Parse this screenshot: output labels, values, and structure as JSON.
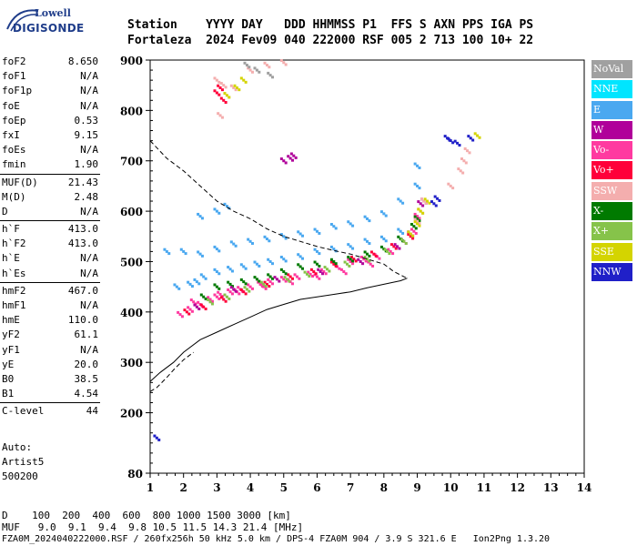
{
  "logo": {
    "line1": "Lowell",
    "line2": "DIGISONDE"
  },
  "header": {
    "line1": "Station    YYYY DAY   DDD HHMMSS P1  FFS S AXN PPS IGA PS",
    "line2": "Fortaleza  2024 Fev09 040 222000 RSF 005 2 713 100 10+ 22"
  },
  "params_group1": [
    {
      "name": "foF2",
      "value": "8.650"
    },
    {
      "name": "foF1",
      "value": "N/A"
    },
    {
      "name": "foF1p",
      "value": "N/A"
    },
    {
      "name": "foE",
      "value": "N/A"
    },
    {
      "name": "foEp",
      "value": "0.53"
    },
    {
      "name": "fxI",
      "value": "9.15"
    },
    {
      "name": "foEs",
      "value": "N/A"
    },
    {
      "name": "fmin",
      "value": "1.90"
    }
  ],
  "params_group2": [
    {
      "name": "MUF(D)",
      "value": "21.43"
    },
    {
      "name": "M(D)",
      "value": "2.48"
    },
    {
      "name": "D",
      "value": "N/A"
    }
  ],
  "params_group3": [
    {
      "name": "h`F",
      "value": "413.0"
    },
    {
      "name": "h`F2",
      "value": "413.0"
    },
    {
      "name": "h`E",
      "value": "N/A"
    },
    {
      "name": "h`Es",
      "value": "N/A"
    }
  ],
  "params_group4": [
    {
      "name": "hmF2",
      "value": "467.0"
    },
    {
      "name": "hmF1",
      "value": "N/A"
    },
    {
      "name": "hmE",
      "value": "110.0"
    },
    {
      "name": "yF2",
      "value": "61.1"
    },
    {
      "name": "yF1",
      "value": "N/A"
    },
    {
      "name": "yE",
      "value": "20.0"
    },
    {
      "name": "B0",
      "value": "38.5"
    },
    {
      "name": "B1",
      "value": "4.54"
    }
  ],
  "params_group5": [
    {
      "name": "C-level",
      "value": "44"
    }
  ],
  "auto": {
    "line1": "Auto:",
    "line2": "Artist5",
    "line3": "500200"
  },
  "legend": [
    {
      "label": "NoVal",
      "color": "#a0a0a0"
    },
    {
      "label": "NNE",
      "color": "#00e5ff"
    },
    {
      "label": "E",
      "color": "#4aa8f0"
    },
    {
      "label": "W",
      "color": "#b0009a"
    },
    {
      "label": "Vo-",
      "color": "#ff3aa0"
    },
    {
      "label": "Vo+",
      "color": "#ff003a"
    },
    {
      "label": "SSW",
      "color": "#f4aeae"
    },
    {
      "label": "X-",
      "color": "#007a00"
    },
    {
      "label": "X+",
      "color": "#86c34a"
    },
    {
      "label": "SSE",
      "color": "#d4d400"
    },
    {
      "label": "NNW",
      "color": "#2020c8"
    }
  ],
  "bottom": {
    "line1": "D    100  200  400  600  800 1000 1500 3000 [km]",
    "line2": "MUF   9.0  9.1  9.4  9.8 10.5 11.5 14.3 21.4 [MHz]"
  },
  "footer": "FZA0M_2024040222000.RSF / 260fx256h 50 kHz 5.0 km / DPS-4 FZA0M 904 / 3.9 S 321.6 E   Ion2Png 1.3.20",
  "chart_data": {
    "type": "scatter",
    "x_ticks": [
      "1",
      "2",
      "3",
      "4",
      "5",
      "6",
      "7",
      "8",
      "9",
      "10",
      "11",
      "12",
      "13",
      "14"
    ],
    "y_ticks": [
      "80",
      "200",
      "300",
      "400",
      "500",
      "600",
      "700",
      "800",
      "900"
    ],
    "xlim": [
      1,
      14
    ],
    "ylim": [
      80,
      900
    ],
    "grid": false,
    "series": [
      {
        "name": "E",
        "color": "#4aa8f0",
        "points": [
          [
            1.5,
            520
          ],
          [
            2,
            520
          ],
          [
            2.5,
            515
          ],
          [
            3,
            525
          ],
          [
            3.5,
            535
          ],
          [
            4,
            540
          ],
          [
            4.5,
            545
          ],
          [
            5,
            550
          ],
          [
            5.5,
            555
          ],
          [
            6,
            560
          ],
          [
            6.5,
            570
          ],
          [
            7,
            575
          ],
          [
            7.5,
            585
          ],
          [
            8,
            595
          ],
          [
            8.5,
            620
          ],
          [
            9,
            650
          ],
          [
            9,
            690
          ],
          [
            2.2,
            455
          ],
          [
            2.6,
            470
          ],
          [
            3,
            480
          ],
          [
            3.4,
            485
          ],
          [
            3.8,
            490
          ],
          [
            4.2,
            495
          ],
          [
            4.6,
            500
          ],
          [
            5,
            505
          ],
          [
            5.5,
            510
          ],
          [
            6,
            520
          ],
          [
            6.5,
            525
          ],
          [
            7,
            530
          ],
          [
            7.5,
            540
          ],
          [
            8,
            545
          ],
          [
            8.5,
            560
          ],
          [
            2.5,
            590
          ],
          [
            3,
            600
          ],
          [
            3.3,
            610
          ],
          [
            1.8,
            450
          ],
          [
            2.4,
            460
          ]
        ]
      },
      {
        "name": "Vo-",
        "color": "#ff3aa0",
        "points": [
          [
            1.9,
            395
          ],
          [
            2.2,
            405
          ],
          [
            2.5,
            415
          ],
          [
            2.8,
            425
          ],
          [
            3.1,
            435
          ],
          [
            3.4,
            440
          ],
          [
            3.7,
            445
          ],
          [
            4,
            450
          ],
          [
            4.3,
            455
          ],
          [
            4.6,
            460
          ],
          [
            5,
            465
          ],
          [
            5.4,
            470
          ],
          [
            5.8,
            475
          ],
          [
            6.2,
            480
          ],
          [
            6.6,
            490
          ],
          [
            7,
            500
          ],
          [
            7.4,
            505
          ],
          [
            7.8,
            510
          ],
          [
            8.2,
            520
          ],
          [
            8.6,
            540
          ],
          [
            8.9,
            560
          ],
          [
            9,
            590
          ],
          [
            2.3,
            420
          ],
          [
            3,
            430
          ],
          [
            3.6,
            440
          ],
          [
            4.4,
            450
          ],
          [
            5.2,
            460
          ],
          [
            6,
            470
          ],
          [
            6.8,
            480
          ],
          [
            7.6,
            495
          ]
        ]
      },
      {
        "name": "Vo+",
        "color": "#ff003a",
        "points": [
          [
            2.1,
            400
          ],
          [
            2.6,
            410
          ],
          [
            3.2,
            425
          ],
          [
            3.8,
            440
          ],
          [
            4.5,
            455
          ],
          [
            5.2,
            470
          ],
          [
            5.9,
            480
          ],
          [
            6.5,
            495
          ],
          [
            7.1,
            505
          ],
          [
            7.7,
            515
          ],
          [
            8.3,
            530
          ],
          [
            8.8,
            550
          ],
          [
            3.0,
            835
          ],
          [
            3.2,
            820
          ],
          [
            3.1,
            845
          ]
        ]
      },
      {
        "name": "X-",
        "color": "#007a00",
        "points": [
          [
            2.6,
            430
          ],
          [
            3.0,
            450
          ],
          [
            3.4,
            455
          ],
          [
            3.8,
            460
          ],
          [
            4.2,
            465
          ],
          [
            4.6,
            470
          ],
          [
            5,
            480
          ],
          [
            5.5,
            490
          ],
          [
            6,
            495
          ],
          [
            6.5,
            500
          ],
          [
            7,
            505
          ],
          [
            7.5,
            515
          ],
          [
            8,
            525
          ],
          [
            8.5,
            545
          ],
          [
            8.9,
            570
          ],
          [
            9,
            585
          ]
        ]
      },
      {
        "name": "X+",
        "color": "#86c34a",
        "points": [
          [
            2.8,
            420
          ],
          [
            3.3,
            430
          ],
          [
            3.9,
            445
          ],
          [
            4.4,
            455
          ],
          [
            5.1,
            465
          ],
          [
            5.7,
            475
          ],
          [
            6.3,
            485
          ],
          [
            6.9,
            495
          ],
          [
            7.5,
            505
          ],
          [
            8.1,
            520
          ],
          [
            8.6,
            540
          ]
        ]
      },
      {
        "name": "W",
        "color": "#b0009a",
        "points": [
          [
            2.4,
            410
          ],
          [
            3.5,
            445
          ],
          [
            4.8,
            465
          ],
          [
            6.1,
            480
          ],
          [
            7.3,
            500
          ],
          [
            8.4,
            530
          ],
          [
            8.8,
            555
          ],
          [
            5.0,
            700
          ],
          [
            5.2,
            705
          ],
          [
            5.3,
            710
          ],
          [
            9.1,
            615
          ],
          [
            9.2,
            620
          ]
        ]
      },
      {
        "name": "SSW",
        "color": "#f4aeae",
        "points": [
          [
            9,
            580
          ],
          [
            9.1,
            600
          ],
          [
            9.2,
            620
          ],
          [
            10,
            650
          ],
          [
            10.3,
            680
          ],
          [
            10.5,
            720
          ],
          [
            10.4,
            700
          ],
          [
            3,
            860
          ],
          [
            3.2,
            850
          ],
          [
            3.5,
            845
          ],
          [
            4,
            880
          ],
          [
            4.5,
            890
          ],
          [
            5,
            895
          ],
          [
            3.1,
            790
          ]
        ]
      },
      {
        "name": "SSE",
        "color": "#d4d400",
        "points": [
          [
            8.8,
            555
          ],
          [
            9,
            575
          ],
          [
            9.1,
            600
          ],
          [
            9.3,
            620
          ],
          [
            3.8,
            860
          ],
          [
            3.3,
            830
          ],
          [
            3.6,
            845
          ],
          [
            10.8,
            750
          ]
        ]
      },
      {
        "name": "NNW",
        "color": "#2020c8",
        "points": [
          [
            9.5,
            615
          ],
          [
            9.6,
            625
          ],
          [
            10,
            740
          ],
          [
            10.2,
            735
          ],
          [
            9.9,
            745
          ],
          [
            10.6,
            745
          ],
          [
            1.2,
            150
          ]
        ]
      },
      {
        "name": "NoVal",
        "color": "#a0a0a0",
        "points": [
          [
            4.2,
            880
          ],
          [
            4.6,
            870
          ],
          [
            3.9,
            890
          ]
        ]
      }
    ],
    "profile_solid": [
      [
        1,
        262
      ],
      [
        1.3,
        280
      ],
      [
        1.7,
        300
      ],
      [
        2,
        320
      ],
      [
        2.5,
        345
      ],
      [
        3,
        360
      ],
      [
        3.5,
        375
      ],
      [
        4,
        390
      ],
      [
        4.5,
        405
      ],
      [
        5,
        415
      ],
      [
        5.5,
        425
      ],
      [
        6,
        430
      ],
      [
        6.5,
        435
      ],
      [
        7,
        440
      ],
      [
        7.5,
        448
      ],
      [
        8,
        455
      ],
      [
        8.5,
        462
      ],
      [
        8.7,
        467
      ]
    ],
    "profile_dashed_low": [
      [
        1,
        242
      ],
      [
        1.2,
        250
      ],
      [
        1.5,
        270
      ],
      [
        1.7,
        285
      ],
      [
        2,
        305
      ],
      [
        2.3,
        320
      ]
    ],
    "profile_dashed_high": [
      [
        1,
        740
      ],
      [
        1.5,
        705
      ],
      [
        2,
        680
      ],
      [
        2.5,
        650
      ],
      [
        3,
        620
      ],
      [
        3.5,
        600
      ],
      [
        4,
        585
      ],
      [
        4.5,
        565
      ],
      [
        5,
        550
      ],
      [
        5.5,
        540
      ],
      [
        6,
        530
      ],
      [
        6.5,
        522
      ],
      [
        7,
        515
      ],
      [
        7.5,
        505
      ],
      [
        8,
        495
      ],
      [
        8.3,
        480
      ],
      [
        8.6,
        470
      ],
      [
        8.7,
        467
      ]
    ]
  }
}
